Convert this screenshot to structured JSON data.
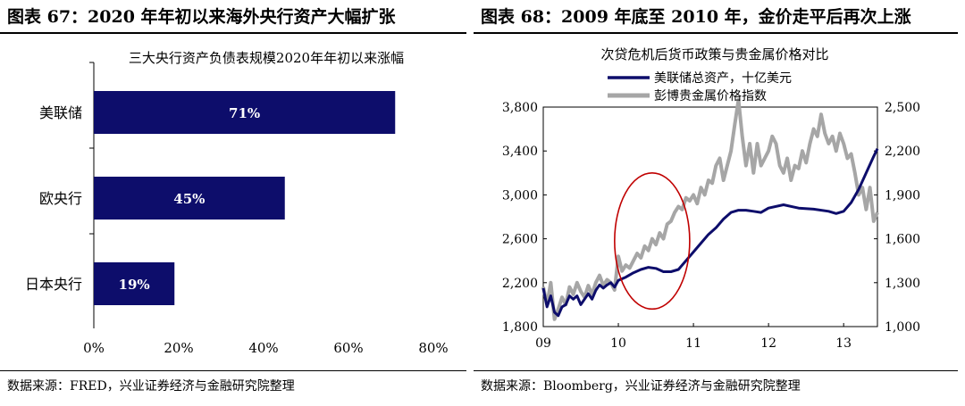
{
  "left": {
    "figure_title": "图表 67：2020 年年初以来海外央行资产大幅扩张",
    "source": "数据来源：FRED，兴业证券经济与金融研究院整理"
  },
  "right": {
    "figure_title": "图表 68：2009 年底至 2010 年，金价走平后再次上涨",
    "source": "数据来源：Bloomberg，兴业证券经济与金融研究院整理"
  },
  "chart_data": [
    {
      "type": "bar",
      "orientation": "horizontal",
      "title": "三大央行资产负债表规模2020年年初以来涨幅",
      "categories": [
        "美联储",
        "欧央行",
        "日本央行"
      ],
      "values": [
        71,
        45,
        19
      ],
      "value_labels": [
        "71%",
        "45%",
        "19%"
      ],
      "xlim": [
        0,
        80
      ],
      "xticks": [
        "0%",
        "20%",
        "40%",
        "60%",
        "80%"
      ],
      "grid": false,
      "bar_color": "#0d0d6b",
      "label_color": "#ffffff"
    },
    {
      "type": "line",
      "title": "次贷危机后货币政策与贵金属价格对比",
      "legend_position": "top-left",
      "x_ticks": [
        "09",
        "10",
        "11",
        "12",
        "13"
      ],
      "x_range": [
        2009.0,
        2013.45
      ],
      "y_left": {
        "ticks": [
          "1,800",
          "2,200",
          "2,600",
          "3,000",
          "3,400",
          "3,800"
        ],
        "range": [
          1800,
          3800
        ]
      },
      "y_right": {
        "ticks": [
          "1,000",
          "1,300",
          "1,600",
          "1,900",
          "2,200",
          "2,500"
        ],
        "range": [
          1000,
          2500
        ]
      },
      "grid": false,
      "annotation": {
        "type": "ellipse",
        "color": "#c00000",
        "x_center": 2010.45,
        "y_center_left": 2580,
        "x_radius": 0.5,
        "y_radius_left": 620
      },
      "series": [
        {
          "name": "美联储总资产，十亿美元",
          "axis": "left",
          "color": "#0d0d6b",
          "x": [
            2009.0,
            2009.05,
            2009.1,
            2009.15,
            2009.2,
            2009.25,
            2009.3,
            2009.35,
            2009.4,
            2009.45,
            2009.5,
            2009.55,
            2009.6,
            2009.65,
            2009.7,
            2009.75,
            2009.8,
            2009.85,
            2009.9,
            2009.95,
            2010.0,
            2010.1,
            2010.2,
            2010.3,
            2010.4,
            2010.5,
            2010.6,
            2010.7,
            2010.8,
            2010.9,
            2011.0,
            2011.1,
            2011.2,
            2011.3,
            2011.4,
            2011.5,
            2011.6,
            2011.7,
            2011.8,
            2011.9,
            2012.0,
            2012.2,
            2012.4,
            2012.6,
            2012.8,
            2012.9,
            2013.0,
            2013.1,
            2013.2,
            2013.3,
            2013.4,
            2013.45
          ],
          "y": [
            2150,
            1980,
            2080,
            1930,
            1900,
            1980,
            2000,
            2080,
            2050,
            2080,
            2000,
            2050,
            2100,
            2050,
            2130,
            2180,
            2150,
            2180,
            2200,
            2160,
            2220,
            2250,
            2290,
            2320,
            2340,
            2330,
            2300,
            2300,
            2320,
            2400,
            2480,
            2560,
            2640,
            2700,
            2780,
            2840,
            2860,
            2860,
            2850,
            2840,
            2880,
            2910,
            2880,
            2870,
            2850,
            2830,
            2850,
            2930,
            3050,
            3200,
            3350,
            3420
          ]
        },
        {
          "name": "彭博贵金属价格指数",
          "axis": "right",
          "color": "#a6a6a6",
          "x": [
            2009.0,
            2009.05,
            2009.1,
            2009.15,
            2009.2,
            2009.25,
            2009.3,
            2009.35,
            2009.4,
            2009.45,
            2009.5,
            2009.55,
            2009.6,
            2009.65,
            2009.7,
            2009.75,
            2009.8,
            2009.85,
            2009.9,
            2009.95,
            2010.0,
            2010.05,
            2010.1,
            2010.15,
            2010.2,
            2010.25,
            2010.3,
            2010.35,
            2010.4,
            2010.45,
            2010.5,
            2010.55,
            2010.6,
            2010.65,
            2010.7,
            2010.75,
            2010.8,
            2010.85,
            2010.9,
            2010.95,
            2011.0,
            2011.05,
            2011.1,
            2011.15,
            2011.2,
            2011.25,
            2011.3,
            2011.35,
            2011.4,
            2011.45,
            2011.5,
            2011.55,
            2011.6,
            2011.65,
            2011.7,
            2011.75,
            2011.8,
            2011.85,
            2011.9,
            2011.95,
            2012.0,
            2012.05,
            2012.1,
            2012.15,
            2012.2,
            2012.25,
            2012.3,
            2012.35,
            2012.4,
            2012.45,
            2012.5,
            2012.55,
            2012.6,
            2012.65,
            2012.7,
            2012.75,
            2012.8,
            2012.85,
            2012.9,
            2012.95,
            2013.0,
            2013.05,
            2013.1,
            2013.15,
            2013.2,
            2013.25,
            2013.3,
            2013.35,
            2013.4,
            2013.45
          ],
          "y": [
            1270,
            1150,
            1300,
            1050,
            1120,
            1200,
            1150,
            1270,
            1220,
            1300,
            1240,
            1200,
            1280,
            1220,
            1300,
            1350,
            1280,
            1320,
            1300,
            1250,
            1480,
            1380,
            1420,
            1400,
            1450,
            1500,
            1470,
            1550,
            1520,
            1600,
            1560,
            1640,
            1600,
            1700,
            1720,
            1780,
            1820,
            1800,
            1880,
            1860,
            1900,
            1840,
            1950,
            1900,
            2000,
            1980,
            2100,
            2150,
            2000,
            2100,
            2200,
            2380,
            2550,
            2300,
            2100,
            2250,
            2050,
            2250,
            2100,
            2150,
            2200,
            2300,
            2250,
            2100,
            2050,
            2150,
            2000,
            2100,
            2080,
            2200,
            2120,
            2250,
            2350,
            2300,
            2450,
            2320,
            2250,
            2300,
            2200,
            2320,
            2250,
            2150,
            2180,
            2050,
            1900,
            1950,
            1800,
            1950,
            1720,
            1780
          ]
        }
      ]
    }
  ]
}
